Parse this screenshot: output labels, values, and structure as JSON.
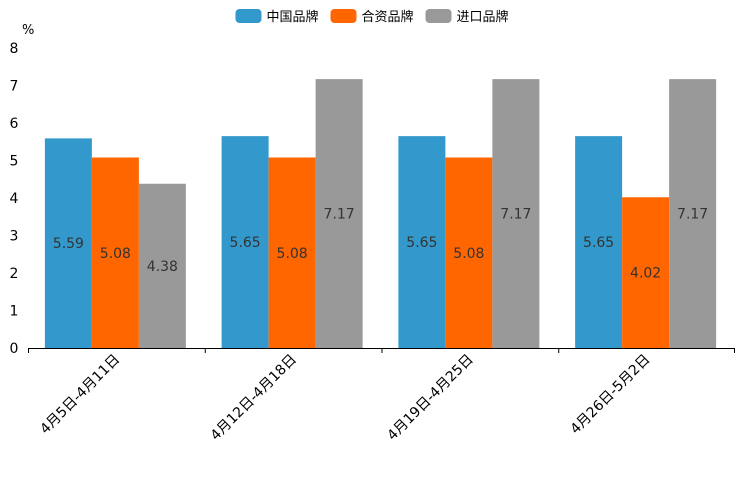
{
  "chart_data": {
    "type": "bar",
    "unit_label": "%",
    "categories": [
      "4月5日-4月11日",
      "4月12日-4月18日",
      "4月19日-4月25日",
      "4月26日-5月2日"
    ],
    "series": [
      {
        "name": "中国品牌",
        "color": "#3399cc",
        "values": [
          5.59,
          5.65,
          5.65,
          5.65
        ],
        "labels": [
          "5.59",
          "5.65",
          "5.65",
          "5.65"
        ]
      },
      {
        "name": "合资品牌",
        "color": "#ff6600",
        "values": [
          5.08,
          5.08,
          5.08,
          4.02
        ],
        "labels": [
          "5.08",
          "5.08",
          "5.08",
          "4.02"
        ]
      },
      {
        "name": "进口品牌",
        "color": "#999999",
        "values": [
          4.38,
          7.17,
          7.17,
          7.17
        ],
        "labels": [
          "4.38",
          "7.17",
          "7.17",
          "7.17"
        ]
      }
    ],
    "ylim": [
      0,
      8
    ],
    "yticks": [
      "0",
      "1",
      "2",
      "3",
      "4",
      "5",
      "6",
      "7",
      "8"
    ],
    "legend_position": "top-center",
    "grid": false
  }
}
